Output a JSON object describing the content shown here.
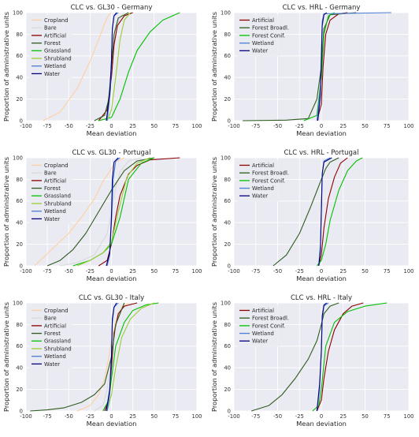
{
  "figure": {
    "xlabel": "Mean deviation",
    "ylabel": "Proportion of administrative units",
    "xticks": [
      -100,
      -75,
      -50,
      -25,
      0,
      25,
      50,
      75,
      100
    ],
    "yticks": [
      0,
      20,
      40,
      60,
      80,
      100
    ]
  },
  "chart_data": [
    {
      "type": "line",
      "title": "CLC vs. GL30 - Germany",
      "xlabel": "Mean deviation",
      "ylabel": "Proportion of administrative units",
      "xlim": [
        -100,
        100
      ],
      "ylim": [
        0,
        100
      ],
      "grid": true,
      "legend": "top-left",
      "series": [
        {
          "name": "Cropland",
          "color": "#ffd0a0",
          "x": [
            -80,
            -60,
            -40,
            -25,
            -15,
            -8,
            -3,
            0
          ],
          "y": [
            0,
            8,
            30,
            55,
            75,
            90,
            98,
            100
          ]
        },
        {
          "name": "Bare",
          "color": "#d9d9d9",
          "x": [
            -12,
            -5,
            0,
            5,
            10,
            15
          ],
          "y": [
            0,
            12,
            50,
            85,
            96,
            100
          ]
        },
        {
          "name": "Artificial",
          "color": "#8b0000",
          "x": [
            -15,
            -5,
            0,
            3,
            7,
            15,
            25
          ],
          "y": [
            0,
            10,
            40,
            70,
            88,
            97,
            100
          ]
        },
        {
          "name": "Forest",
          "color": "#2e5c1e",
          "x": [
            -20,
            -8,
            -3,
            0,
            3,
            8,
            20
          ],
          "y": [
            0,
            5,
            20,
            50,
            80,
            95,
            100
          ]
        },
        {
          "name": "Grassland",
          "color": "#00c000",
          "x": [
            -15,
            0,
            10,
            20,
            30,
            45,
            60,
            80
          ],
          "y": [
            0,
            3,
            20,
            45,
            65,
            82,
            93,
            100
          ]
        },
        {
          "name": "Shrubland",
          "color": "#9acd32",
          "x": [
            -5,
            0,
            5,
            10,
            15,
            22
          ],
          "y": [
            0,
            10,
            40,
            75,
            93,
            100
          ]
        },
        {
          "name": "Wetland",
          "color": "#4a7fd4",
          "x": [
            -5,
            -1,
            0,
            1,
            3,
            8
          ],
          "y": [
            0,
            30,
            55,
            85,
            97,
            100
          ]
        },
        {
          "name": "Water",
          "color": "#000080",
          "x": [
            -6,
            -2,
            0,
            1,
            3,
            6
          ],
          "y": [
            0,
            25,
            55,
            85,
            97,
            100
          ]
        }
      ]
    },
    {
      "type": "line",
      "title": "CLC vs. HRL - Germany",
      "xlabel": "Mean deviation",
      "ylabel": "Proportion of administrative units",
      "xlim": [
        -100,
        100
      ],
      "ylim": [
        0,
        100
      ],
      "grid": true,
      "legend": "top-left",
      "series": [
        {
          "name": "Artificial",
          "color": "#8b0000",
          "x": [
            -5,
            0,
            2,
            5,
            10,
            20,
            30
          ],
          "y": [
            0,
            15,
            50,
            80,
            93,
            99,
            100
          ]
        },
        {
          "name": "Forest Broadl.",
          "color": "#2e5c1e",
          "x": [
            -90,
            -40,
            -15,
            -5,
            0,
            3,
            10,
            40
          ],
          "y": [
            0,
            0.5,
            2,
            20,
            50,
            85,
            98,
            100
          ]
        },
        {
          "name": "Forest Conif.",
          "color": "#00c000",
          "x": [
            -20,
            -5,
            0,
            3,
            8,
            15
          ],
          "y": [
            0,
            5,
            40,
            80,
            97,
            100
          ]
        },
        {
          "name": "Wetland",
          "color": "#4a7fd4",
          "x": [
            -5,
            -1,
            0,
            1,
            3,
            80
          ],
          "y": [
            0,
            30,
            60,
            92,
            99,
            100
          ]
        },
        {
          "name": "Water",
          "color": "#000080",
          "x": [
            -4,
            -1,
            0,
            1,
            3,
            6
          ],
          "y": [
            0,
            25,
            55,
            88,
            98,
            100
          ]
        }
      ]
    },
    {
      "type": "line",
      "title": "CLC vs. GL30 - Portugal",
      "xlabel": "Mean deviation",
      "ylabel": "Proportion of administrative units",
      "xlim": [
        -100,
        100
      ],
      "ylim": [
        0,
        100
      ],
      "grid": true,
      "legend": "top-left",
      "series": [
        {
          "name": "Cropland",
          "color": "#ffd0a0",
          "x": [
            -90,
            -70,
            -50,
            -35,
            -20,
            -10,
            0,
            5,
            15
          ],
          "y": [
            0,
            15,
            30,
            45,
            62,
            78,
            90,
            96,
            100
          ]
        },
        {
          "name": "Bare",
          "color": "#d9d9d9",
          "x": [
            -60,
            -40,
            -20,
            -5,
            0,
            5,
            10,
            20,
            35
          ],
          "y": [
            0,
            3,
            10,
            30,
            50,
            72,
            87,
            97,
            100
          ]
        },
        {
          "name": "Artificial",
          "color": "#8b0000",
          "x": [
            -15,
            -5,
            0,
            5,
            10,
            20,
            30,
            45,
            80
          ],
          "y": [
            0,
            5,
            20,
            45,
            65,
            85,
            93,
            98,
            100
          ]
        },
        {
          "name": "Forest",
          "color": "#2e5c1e",
          "x": [
            -75,
            -60,
            -45,
            -30,
            -15,
            0,
            15,
            30,
            50
          ],
          "y": [
            0,
            5,
            15,
            30,
            50,
            70,
            88,
            97,
            100
          ]
        },
        {
          "name": "Grassland",
          "color": "#00c000",
          "x": [
            -45,
            -25,
            -10,
            0,
            10,
            20,
            35,
            50
          ],
          "y": [
            0,
            5,
            12,
            20,
            45,
            80,
            95,
            100
          ]
        },
        {
          "name": "Shrubland",
          "color": "#9acd32",
          "x": [
            -40,
            -25,
            -10,
            0,
            8,
            18,
            30,
            45
          ],
          "y": [
            0,
            5,
            12,
            22,
            50,
            82,
            95,
            100
          ]
        },
        {
          "name": "Wetland",
          "color": "#4a7fd4",
          "x": [
            -5,
            -2,
            0,
            2,
            5,
            10
          ],
          "y": [
            0,
            10,
            40,
            80,
            97,
            100
          ]
        },
        {
          "name": "Water",
          "color": "#000080",
          "x": [
            -6,
            -2,
            0,
            1,
            3,
            8
          ],
          "y": [
            0,
            12,
            45,
            80,
            96,
            100
          ]
        }
      ]
    },
    {
      "type": "line",
      "title": "CLC vs. HRL - Portugal",
      "xlabel": "Mean deviation",
      "ylabel": "Proportion of administrative units",
      "xlim": [
        -100,
        100
      ],
      "ylim": [
        0,
        100
      ],
      "grid": true,
      "legend": "top-left",
      "series": [
        {
          "name": "Artificial",
          "color": "#8b0000",
          "x": [
            -3,
            0,
            3,
            8,
            15,
            22,
            30
          ],
          "y": [
            0,
            10,
            35,
            62,
            82,
            95,
            100
          ]
        },
        {
          "name": "Forest Broadl.",
          "color": "#2e5c1e",
          "x": [
            -55,
            -40,
            -25,
            -12,
            0,
            5,
            10,
            20
          ],
          "y": [
            0,
            10,
            30,
            55,
            80,
            90,
            96,
            100
          ]
        },
        {
          "name": "Forest Conif.",
          "color": "#00c000",
          "x": [
            -5,
            0,
            5,
            10,
            20,
            30,
            40,
            47
          ],
          "y": [
            0,
            5,
            20,
            42,
            70,
            88,
            97,
            100
          ]
        },
        {
          "name": "Wetland",
          "color": "#4a7fd4",
          "x": [
            -3,
            -1,
            0,
            1,
            3,
            10
          ],
          "y": [
            0,
            20,
            50,
            85,
            97,
            100
          ]
        },
        {
          "name": "Water",
          "color": "#000080",
          "x": [
            -3,
            -1,
            0,
            1,
            3,
            12
          ],
          "y": [
            0,
            15,
            50,
            85,
            96,
            100
          ]
        }
      ]
    },
    {
      "type": "line",
      "title": "CLC vs. GL30 - Italy",
      "xlabel": "Mean deviation",
      "ylabel": "Proportion of administrative units",
      "xlim": [
        -100,
        100
      ],
      "ylim": [
        0,
        100
      ],
      "grid": true,
      "legend": "top-left",
      "series": [
        {
          "name": "Cropland",
          "color": "#ffd0a0",
          "x": [
            -40,
            -25,
            -15,
            -8,
            -3,
            0,
            5,
            12,
            20
          ],
          "y": [
            0,
            5,
            15,
            30,
            50,
            65,
            82,
            96,
            100
          ]
        },
        {
          "name": "Bare",
          "color": "#d9d9d9",
          "x": [
            -20,
            -10,
            -5,
            0,
            5,
            12,
            25
          ],
          "y": [
            0,
            5,
            20,
            50,
            80,
            95,
            100
          ]
        },
        {
          "name": "Artificial",
          "color": "#8b0000",
          "x": [
            -8,
            -3,
            0,
            3,
            8,
            15,
            30
          ],
          "y": [
            0,
            10,
            40,
            72,
            90,
            97,
            100
          ]
        },
        {
          "name": "Forest",
          "color": "#2e5c1e",
          "x": [
            -95,
            -75,
            -55,
            -35,
            -20,
            -8,
            0,
            5,
            15
          ],
          "y": [
            0,
            1,
            3,
            8,
            15,
            25,
            50,
            80,
            100
          ]
        },
        {
          "name": "Grassland",
          "color": "#00c000",
          "x": [
            -10,
            -3,
            0,
            5,
            15,
            25,
            40,
            55
          ],
          "y": [
            0,
            10,
            30,
            60,
            82,
            93,
            98,
            100
          ]
        },
        {
          "name": "Shrubland",
          "color": "#9acd32",
          "x": [
            -5,
            0,
            5,
            12,
            22,
            35,
            50
          ],
          "y": [
            0,
            15,
            40,
            68,
            85,
            95,
            100
          ]
        },
        {
          "name": "Wetland",
          "color": "#4a7fd4",
          "x": [
            -5,
            -2,
            0,
            1,
            3,
            8
          ],
          "y": [
            0,
            15,
            50,
            82,
            96,
            100
          ]
        },
        {
          "name": "Water",
          "color": "#000080",
          "x": [
            -6,
            -2,
            0,
            1,
            3,
            6
          ],
          "y": [
            0,
            20,
            50,
            85,
            96,
            100
          ]
        }
      ]
    },
    {
      "type": "line",
      "title": "CLC vs. HRL - Italy",
      "xlabel": "Mean deviation",
      "ylabel": "Proportion of administrative units",
      "xlim": [
        -100,
        100
      ],
      "ylim": [
        0,
        100
      ],
      "grid": true,
      "legend": "top-left",
      "series": [
        {
          "name": "Artificial",
          "color": "#8b0000",
          "x": [
            -5,
            0,
            3,
            8,
            15,
            25,
            35,
            48
          ],
          "y": [
            0,
            10,
            30,
            55,
            75,
            90,
            97,
            100
          ]
        },
        {
          "name": "Forest Broadl.",
          "color": "#2e5c1e",
          "x": [
            -80,
            -60,
            -45,
            -30,
            -15,
            -5,
            0,
            3,
            10,
            20
          ],
          "y": [
            0,
            5,
            15,
            30,
            48,
            65,
            80,
            90,
            97,
            100
          ]
        },
        {
          "name": "Forest Conif.",
          "color": "#00c000",
          "x": [
            -10,
            -3,
            0,
            5,
            15,
            30,
            50,
            75
          ],
          "y": [
            0,
            5,
            20,
            60,
            82,
            92,
            97,
            100
          ]
        },
        {
          "name": "Wetland",
          "color": "#4a7fd4",
          "x": [
            -5,
            -2,
            0,
            1,
            3,
            8
          ],
          "y": [
            0,
            20,
            55,
            85,
            97,
            100
          ]
        },
        {
          "name": "Water",
          "color": "#000080",
          "x": [
            -5,
            -2,
            0,
            1,
            3,
            6
          ],
          "y": [
            0,
            25,
            55,
            88,
            98,
            100
          ]
        }
      ]
    }
  ]
}
